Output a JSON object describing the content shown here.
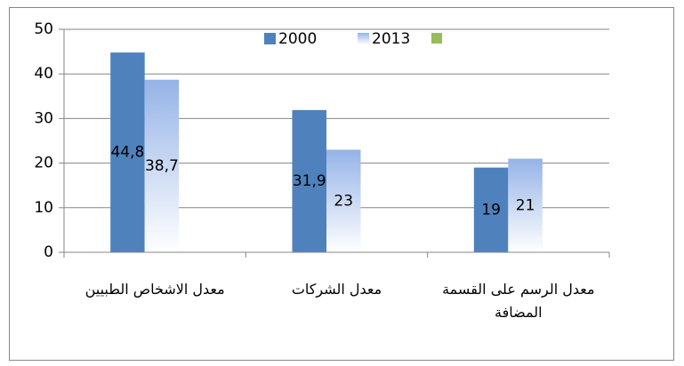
{
  "chart_data": {
    "type": "bar",
    "categories": [
      "معدل الاشخاص الطبيين",
      "معدل الشركات",
      "معدل الرسم على القسمة المضافة"
    ],
    "series": [
      {
        "name": "2000",
        "color": "#4f81bd",
        "values": [
          44.8,
          31.9,
          19
        ],
        "value_labels": [
          "44,8",
          "31,9",
          "19"
        ]
      },
      {
        "name": "2013",
        "color": "#95b3e7",
        "values": [
          38.7,
          23,
          21
        ],
        "value_labels": [
          "38,7",
          "23",
          "21"
        ]
      }
    ],
    "ylim": [
      0,
      50
    ],
    "yticks": [
      0,
      10,
      20,
      30,
      40,
      50
    ],
    "grid": true
  }
}
